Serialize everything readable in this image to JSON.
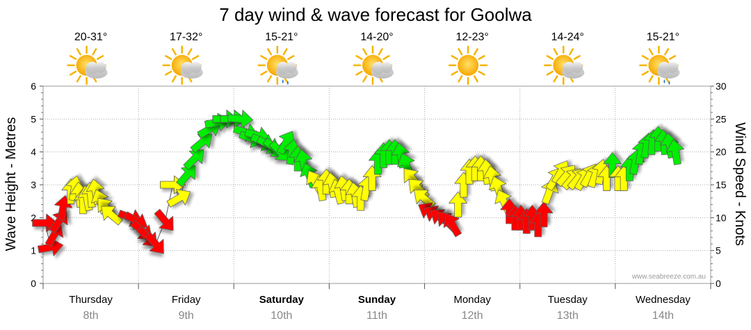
{
  "chart_data": {
    "type": "line",
    "title": "7 day wind & wave forecast for Goolwa",
    "ylabel": "Wave Height - Metres",
    "y2label": "Wind Speed - Knots",
    "ylim": [
      0,
      6
    ],
    "y2lim": [
      0,
      30
    ],
    "yticks": [
      "0",
      "1",
      "2",
      "3",
      "4",
      "5",
      "6"
    ],
    "y2ticks": [
      "0",
      "5",
      "10",
      "15",
      "20",
      "25",
      "30"
    ],
    "grid": true,
    "watermark": "www.seabreeze.com.au",
    "days": [
      {
        "name": "Thursday",
        "date": "8th",
        "temp": "20-31°",
        "icon": "partly-cloudy-icon",
        "bold": false
      },
      {
        "name": "Friday",
        "date": "9th",
        "temp": "17-32°",
        "icon": "partly-cloudy-icon",
        "bold": false
      },
      {
        "name": "Saturday",
        "date": "10th",
        "temp": "15-21°",
        "icon": "showers-icon",
        "bold": true
      },
      {
        "name": "Sunday",
        "date": "11th",
        "temp": "14-20°",
        "icon": "partly-cloudy-icon",
        "bold": true
      },
      {
        "name": "Monday",
        "date": "12th",
        "temp": "12-23°",
        "icon": "sunny-icon",
        "bold": false
      },
      {
        "name": "Tuesday",
        "date": "13th",
        "temp": "14-24°",
        "icon": "partly-cloudy-icon",
        "bold": false
      },
      {
        "name": "Wednesday",
        "date": "14th",
        "temp": "15-21°",
        "icon": "showers-icon",
        "bold": false
      }
    ],
    "colors": {
      "red": "#ff0000",
      "yellow": "#ffff00",
      "green": "#00ee00",
      "stroke": "#555555",
      "grid": "#aaaaaa"
    },
    "series": [
      {
        "name": "Wind Speed - Knots",
        "axis": "right",
        "unit_note": "x in days from Thursday 00:00",
        "points": [
          {
            "x": 0.02,
            "y": 9.2,
            "dir": 0,
            "c": "red"
          },
          {
            "x": 0.08,
            "y": 5.5,
            "dir": -10,
            "c": "red"
          },
          {
            "x": 0.12,
            "y": 7.5,
            "dir": -60,
            "c": "red"
          },
          {
            "x": 0.17,
            "y": 9.5,
            "dir": -55,
            "c": "red"
          },
          {
            "x": 0.21,
            "y": 11.5,
            "dir": -80,
            "c": "red"
          },
          {
            "x": 0.29,
            "y": 14.0,
            "dir": -90,
            "c": "yellow"
          },
          {
            "x": 0.33,
            "y": 14.5,
            "dir": -80,
            "c": "yellow"
          },
          {
            "x": 0.38,
            "y": 13.5,
            "dir": -95,
            "c": "yellow"
          },
          {
            "x": 0.42,
            "y": 12.5,
            "dir": -90,
            "c": "yellow"
          },
          {
            "x": 0.46,
            "y": 13.0,
            "dir": -100,
            "c": "yellow"
          },
          {
            "x": 0.5,
            "y": 13.5,
            "dir": -95,
            "c": "yellow"
          },
          {
            "x": 0.55,
            "y": 14.0,
            "dir": -100,
            "c": "yellow"
          },
          {
            "x": 0.6,
            "y": 12.5,
            "dir": -110,
            "c": "yellow"
          },
          {
            "x": 0.66,
            "y": 11.5,
            "dir": -130,
            "c": "yellow"
          },
          {
            "x": 0.71,
            "y": 10.5,
            "dir": -140,
            "c": "yellow"
          },
          {
            "x": 0.92,
            "y": 10.0,
            "dir": 20,
            "c": "red"
          },
          {
            "x": 0.98,
            "y": 9.5,
            "dir": 30,
            "c": "red"
          },
          {
            "x": 1.04,
            "y": 8.0,
            "dir": 40,
            "c": "red"
          },
          {
            "x": 1.1,
            "y": 7.0,
            "dir": 45,
            "c": "red"
          },
          {
            "x": 1.18,
            "y": 6.0,
            "dir": 50,
            "c": "red"
          },
          {
            "x": 1.28,
            "y": 9.5,
            "dir": 50,
            "c": "red"
          },
          {
            "x": 1.36,
            "y": 15.0,
            "dir": 0,
            "c": "yellow"
          },
          {
            "x": 1.43,
            "y": 13.0,
            "dir": -30,
            "c": "yellow"
          },
          {
            "x": 1.51,
            "y": 16.5,
            "dir": -50,
            "c": "green"
          },
          {
            "x": 1.59,
            "y": 19.0,
            "dir": -45,
            "c": "green"
          },
          {
            "x": 1.67,
            "y": 21.5,
            "dir": -40,
            "c": "green"
          },
          {
            "x": 1.75,
            "y": 23.5,
            "dir": -30,
            "c": "green"
          },
          {
            "x": 1.83,
            "y": 24.5,
            "dir": -10,
            "c": "green"
          },
          {
            "x": 1.91,
            "y": 25.0,
            "dir": 0,
            "c": "green"
          },
          {
            "x": 1.99,
            "y": 25.0,
            "dir": 0,
            "c": "green"
          },
          {
            "x": 2.07,
            "y": 25.0,
            "dir": 5,
            "c": "green"
          },
          {
            "x": 2.13,
            "y": 23.0,
            "dir": 15,
            "c": "green"
          },
          {
            "x": 2.19,
            "y": 22.0,
            "dir": 20,
            "c": "green"
          },
          {
            "x": 2.25,
            "y": 22.5,
            "dir": 15,
            "c": "green"
          },
          {
            "x": 2.31,
            "y": 21.5,
            "dir": 25,
            "c": "green"
          },
          {
            "x": 2.37,
            "y": 21.0,
            "dir": 30,
            "c": "green"
          },
          {
            "x": 2.43,
            "y": 20.5,
            "dir": 40,
            "c": "green"
          },
          {
            "x": 2.49,
            "y": 20.0,
            "dir": 45,
            "c": "green"
          },
          {
            "x": 2.55,
            "y": 21.5,
            "dir": -60,
            "c": "green"
          },
          {
            "x": 2.61,
            "y": 20.0,
            "dir": -80,
            "c": "green"
          },
          {
            "x": 2.67,
            "y": 19.0,
            "dir": -90,
            "c": "green"
          },
          {
            "x": 2.73,
            "y": 18.5,
            "dir": -100,
            "c": "green"
          },
          {
            "x": 2.79,
            "y": 16.5,
            "dir": -110,
            "c": "green"
          },
          {
            "x": 2.85,
            "y": 15.5,
            "dir": -120,
            "c": "yellow"
          },
          {
            "x": 2.91,
            "y": 14.5,
            "dir": -100,
            "c": "yellow"
          },
          {
            "x": 2.97,
            "y": 15.5,
            "dir": -90,
            "c": "yellow"
          },
          {
            "x": 3.03,
            "y": 15.0,
            "dir": -100,
            "c": "yellow"
          },
          {
            "x": 3.09,
            "y": 14.0,
            "dir": -105,
            "c": "yellow"
          },
          {
            "x": 3.15,
            "y": 14.5,
            "dir": -100,
            "c": "yellow"
          },
          {
            "x": 3.21,
            "y": 14.0,
            "dir": -90,
            "c": "yellow"
          },
          {
            "x": 3.27,
            "y": 13.5,
            "dir": -100,
            "c": "yellow"
          },
          {
            "x": 3.33,
            "y": 13.0,
            "dir": -90,
            "c": "yellow"
          },
          {
            "x": 3.39,
            "y": 14.5,
            "dir": -80,
            "c": "yellow"
          },
          {
            "x": 3.45,
            "y": 16.0,
            "dir": -90,
            "c": "yellow"
          },
          {
            "x": 3.51,
            "y": 18.5,
            "dir": -90,
            "c": "green"
          },
          {
            "x": 3.57,
            "y": 19.5,
            "dir": -90,
            "c": "green"
          },
          {
            "x": 3.63,
            "y": 20.0,
            "dir": -90,
            "c": "green"
          },
          {
            "x": 3.69,
            "y": 20.0,
            "dir": -90,
            "c": "green"
          },
          {
            "x": 3.75,
            "y": 19.5,
            "dir": -100,
            "c": "green"
          },
          {
            "x": 3.81,
            "y": 18.0,
            "dir": -110,
            "c": "green"
          },
          {
            "x": 3.87,
            "y": 16.0,
            "dir": -130,
            "c": "yellow"
          },
          {
            "x": 3.93,
            "y": 14.5,
            "dir": -135,
            "c": "yellow"
          },
          {
            "x": 3.99,
            "y": 13.0,
            "dir": -140,
            "c": "yellow"
          },
          {
            "x": 4.05,
            "y": 11.0,
            "dir": -150,
            "c": "red"
          },
          {
            "x": 4.11,
            "y": 10.5,
            "dir": -150,
            "c": "red"
          },
          {
            "x": 4.17,
            "y": 10.0,
            "dir": -145,
            "c": "red"
          },
          {
            "x": 4.23,
            "y": 9.5,
            "dir": -135,
            "c": "red"
          },
          {
            "x": 4.29,
            "y": 9.0,
            "dir": -120,
            "c": "red"
          },
          {
            "x": 4.35,
            "y": 12.0,
            "dir": -90,
            "c": "yellow"
          },
          {
            "x": 4.41,
            "y": 15.0,
            "dir": -90,
            "c": "yellow"
          },
          {
            "x": 4.47,
            "y": 17.0,
            "dir": -90,
            "c": "yellow"
          },
          {
            "x": 4.53,
            "y": 17.5,
            "dir": -90,
            "c": "yellow"
          },
          {
            "x": 4.59,
            "y": 17.5,
            "dir": -90,
            "c": "yellow"
          },
          {
            "x": 4.65,
            "y": 17.0,
            "dir": -95,
            "c": "yellow"
          },
          {
            "x": 4.71,
            "y": 16.0,
            "dir": -100,
            "c": "yellow"
          },
          {
            "x": 4.77,
            "y": 14.5,
            "dir": -110,
            "c": "yellow"
          },
          {
            "x": 4.83,
            "y": 12.5,
            "dir": -115,
            "c": "yellow"
          },
          {
            "x": 4.89,
            "y": 11.0,
            "dir": -90,
            "c": "red"
          },
          {
            "x": 4.95,
            "y": 10.0,
            "dir": -90,
            "c": "red"
          },
          {
            "x": 5.01,
            "y": 10.0,
            "dir": -90,
            "c": "red"
          },
          {
            "x": 5.07,
            "y": 9.5,
            "dir": -90,
            "c": "red"
          },
          {
            "x": 5.13,
            "y": 10.0,
            "dir": -90,
            "c": "red"
          },
          {
            "x": 5.19,
            "y": 9.0,
            "dir": -90,
            "c": "red"
          },
          {
            "x": 5.25,
            "y": 10.5,
            "dir": -90,
            "c": "red"
          },
          {
            "x": 5.31,
            "y": 14.0,
            "dir": -70,
            "c": "yellow"
          },
          {
            "x": 5.37,
            "y": 16.0,
            "dir": -60,
            "c": "yellow"
          },
          {
            "x": 5.43,
            "y": 17.0,
            "dir": -60,
            "c": "yellow"
          },
          {
            "x": 5.49,
            "y": 16.5,
            "dir": -50,
            "c": "yellow"
          },
          {
            "x": 5.55,
            "y": 16.0,
            "dir": -50,
            "c": "yellow"
          },
          {
            "x": 5.61,
            "y": 16.0,
            "dir": -50,
            "c": "yellow"
          },
          {
            "x": 5.67,
            "y": 16.0,
            "dir": -60,
            "c": "yellow"
          },
          {
            "x": 5.73,
            "y": 16.5,
            "dir": -60,
            "c": "yellow"
          },
          {
            "x": 5.79,
            "y": 16.5,
            "dir": -70,
            "c": "yellow"
          },
          {
            "x": 5.85,
            "y": 17.0,
            "dir": -80,
            "c": "yellow"
          },
          {
            "x": 5.91,
            "y": 16.0,
            "dir": -90,
            "c": "yellow"
          },
          {
            "x": 5.97,
            "y": 18.0,
            "dir": -90,
            "c": "green"
          },
          {
            "x": 6.03,
            "y": 16.0,
            "dir": -90,
            "c": "yellow"
          },
          {
            "x": 6.09,
            "y": 16.0,
            "dir": -90,
            "c": "yellow"
          },
          {
            "x": 6.15,
            "y": 17.5,
            "dir": -90,
            "c": "green"
          },
          {
            "x": 6.21,
            "y": 18.5,
            "dir": -80,
            "c": "green"
          },
          {
            "x": 6.27,
            "y": 20.0,
            "dir": -80,
            "c": "green"
          },
          {
            "x": 6.33,
            "y": 21.0,
            "dir": -80,
            "c": "green"
          },
          {
            "x": 6.39,
            "y": 21.5,
            "dir": -85,
            "c": "green"
          },
          {
            "x": 6.45,
            "y": 22.0,
            "dir": -90,
            "c": "green"
          },
          {
            "x": 6.51,
            "y": 21.5,
            "dir": -95,
            "c": "green"
          },
          {
            "x": 6.57,
            "y": 21.0,
            "dir": -100,
            "c": "green"
          },
          {
            "x": 6.63,
            "y": 20.0,
            "dir": -100,
            "c": "green"
          }
        ]
      }
    ]
  }
}
